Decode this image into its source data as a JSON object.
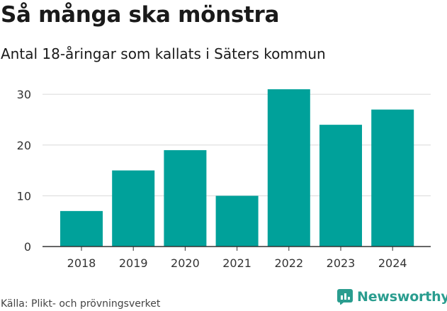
{
  "header": {
    "title": "Så många ska mönstra",
    "subtitle": "Antal 18-åringar som kallats i Säters kommun"
  },
  "footer": {
    "source": "Källa: Plikt- och prövningsverket",
    "brand": "Newsworthy"
  },
  "colors": {
    "bar": "#00a19a",
    "grid": "#d9d9d9",
    "axis": "#333333",
    "brand": "#2a9d8f"
  },
  "chart_data": {
    "type": "bar",
    "title": "Så många ska mönstra",
    "subtitle": "Antal 18-åringar som kallats i Säters kommun",
    "xlabel": "",
    "ylabel": "",
    "categories": [
      "2018",
      "2019",
      "2020",
      "2021",
      "2022",
      "2023",
      "2024"
    ],
    "values": [
      7,
      15,
      19,
      10,
      31,
      24,
      27
    ],
    "ylim": [
      0,
      31
    ],
    "yticks": [
      0,
      10,
      20,
      30
    ],
    "grid": true,
    "legend": "none"
  }
}
